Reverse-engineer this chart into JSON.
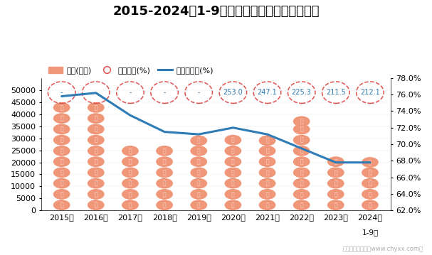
{
  "title": "2015-2024年1-9月山西省工业企业负债统计图",
  "years": [
    "2015年",
    "2016年",
    "2017年",
    "2018年",
    "2019年",
    "2020年",
    "2021年",
    "2022年",
    "2023年",
    "2024年\n1-9月"
  ],
  "years_xtick": [
    "2015年",
    "2016年",
    "2017年",
    "2018年",
    "2019年",
    "2020年",
    "2021年",
    "2022年",
    "2023年",
    "2024年"
  ],
  "liabilities": [
    43200,
    44200,
    26500,
    26500,
    29000,
    30500,
    29000,
    37000,
    20500,
    20000
  ],
  "asset_liability_rate": [
    75.8,
    76.2,
    73.5,
    71.5,
    71.2,
    72.0,
    71.2,
    69.5,
    67.8,
    67.8
  ],
  "equity_ratio_labels": [
    "-",
    "-",
    "-",
    "-",
    "-",
    "253.0",
    "247.1",
    "225.3",
    "211.5",
    "212.1"
  ],
  "bar_color": "#F0977A",
  "line_color": "#2E7BB5",
  "circle_edge_color": "#E05050",
  "left_ylim": [
    0,
    55000
  ],
  "right_ylim": [
    62.0,
    78.0
  ],
  "left_yticks": [
    0,
    5000,
    10000,
    15000,
    20000,
    25000,
    30000,
    35000,
    40000,
    45000,
    50000
  ],
  "right_yticks": [
    62.0,
    64.0,
    66.0,
    68.0,
    70.0,
    72.0,
    74.0,
    76.0,
    78.0
  ],
  "legend_bar_label": "负债(亿元)",
  "legend_circle_label": "产权比率(%)",
  "legend_line_label": "资产负债率(%)",
  "watermark": "制图：智研咨询（www.chyxx.com）",
  "background_color": "#FFFFFF",
  "title_fontsize": 13,
  "axis_fontsize": 8
}
